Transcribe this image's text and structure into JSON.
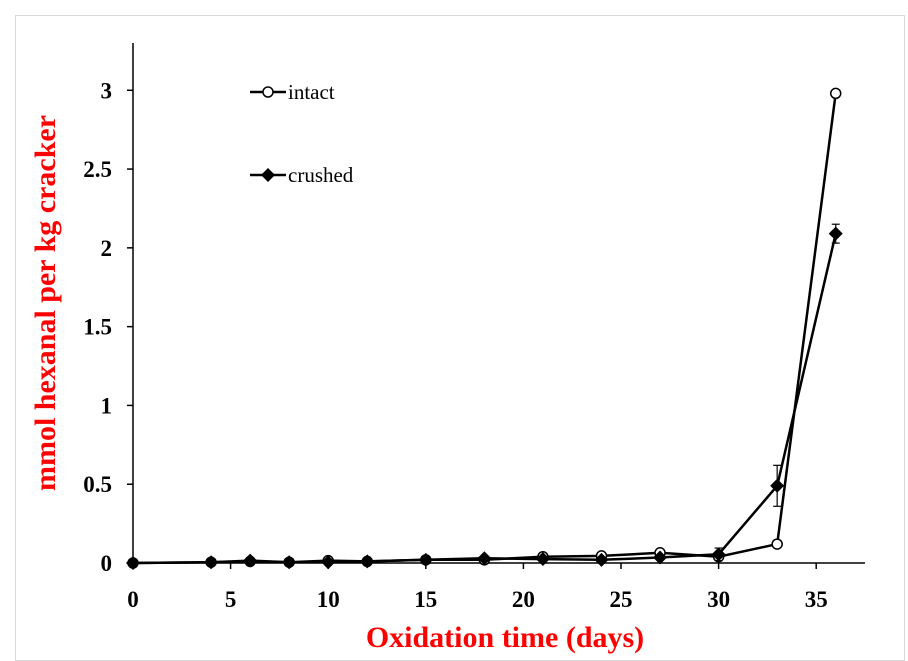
{
  "chart_data": {
    "type": "line",
    "title": "",
    "xlabel": "Oxidation time (days)",
    "ylabel": "mmol hexanal per kg cracker",
    "xlim": [
      0,
      37.5
    ],
    "ylim": [
      0,
      3.3
    ],
    "xticks": [
      0,
      5,
      10,
      15,
      20,
      25,
      30,
      35
    ],
    "yticks": [
      0,
      0.5,
      1,
      1.5,
      2,
      2.5,
      3
    ],
    "xtick_labels": [
      "0",
      "5",
      "10",
      "15",
      "20",
      "25",
      "30",
      "35"
    ],
    "ytick_labels": [
      "0",
      "0.5",
      "1",
      "1.5",
      "2",
      "2.5",
      "3"
    ],
    "grid": false,
    "legend_position": "top-left",
    "label_color": "#ff0000",
    "series": [
      {
        "name": "intact",
        "marker": "open-circle",
        "color": "#000000",
        "x": [
          0,
          4,
          6,
          8,
          10,
          12,
          15,
          18,
          21,
          24,
          27,
          30,
          33,
          36
        ],
        "y": [
          0.0,
          0.005,
          0.01,
          0.005,
          0.015,
          0.01,
          0.02,
          0.02,
          0.04,
          0.045,
          0.065,
          0.04,
          0.12,
          2.98
        ],
        "error": [
          0,
          0,
          0,
          0,
          0,
          0,
          0,
          0,
          0,
          0,
          0,
          0,
          0,
          0.02
        ]
      },
      {
        "name": "crushed",
        "marker": "filled-diamond",
        "color": "#000000",
        "x": [
          0,
          4,
          6,
          8,
          10,
          12,
          15,
          18,
          21,
          24,
          27,
          30,
          33,
          36
        ],
        "y": [
          0.0,
          0.005,
          0.015,
          0.005,
          0.005,
          0.01,
          0.02,
          0.03,
          0.025,
          0.02,
          0.035,
          0.055,
          0.49,
          2.09
        ],
        "error": [
          0,
          0,
          0,
          0,
          0,
          0,
          0,
          0,
          0,
          0,
          0,
          0.04,
          0.13,
          0.06
        ]
      }
    ]
  }
}
